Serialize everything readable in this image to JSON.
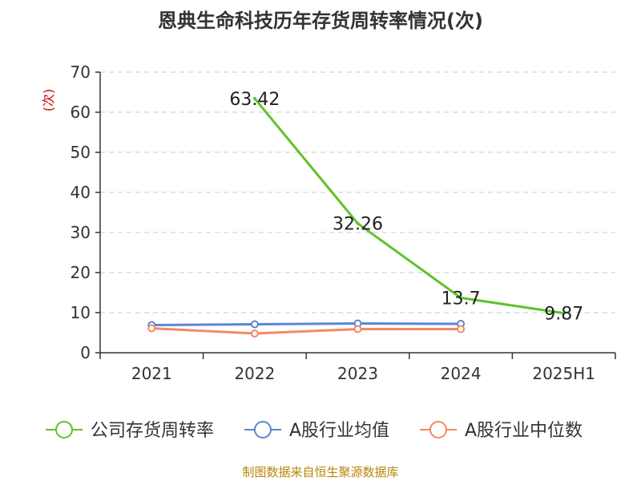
{
  "chart_data": {
    "type": "line",
    "title": "恩典生命科技历年存货周转率情况(次)",
    "ylabel": "(次)",
    "categories": [
      "2021",
      "2022",
      "2023",
      "2024",
      "2025H1"
    ],
    "ylim": [
      0,
      70
    ],
    "yticks": [
      0,
      10,
      20,
      30,
      40,
      50,
      60,
      70
    ],
    "grid": true,
    "legend_position": "bottom",
    "series": [
      {
        "name": "公司存货周转率",
        "color": "#5ec22a",
        "values": [
          null,
          63.42,
          32.26,
          13.7,
          9.87
        ],
        "labels": [
          "",
          "63.42",
          "32.26",
          "13.7",
          "9.87"
        ],
        "show_markers": false
      },
      {
        "name": "A股行业均值",
        "color": "#5b85d6",
        "values": [
          6.9,
          7.1,
          7.3,
          7.2,
          null
        ],
        "labels": [],
        "show_markers": true
      },
      {
        "name": "A股行业中位数",
        "color": "#f4895f",
        "values": [
          6.1,
          4.8,
          5.9,
          5.9,
          null
        ],
        "labels": [],
        "show_markers": true
      }
    ]
  },
  "source": "制图数据来自恒生聚源数据库"
}
